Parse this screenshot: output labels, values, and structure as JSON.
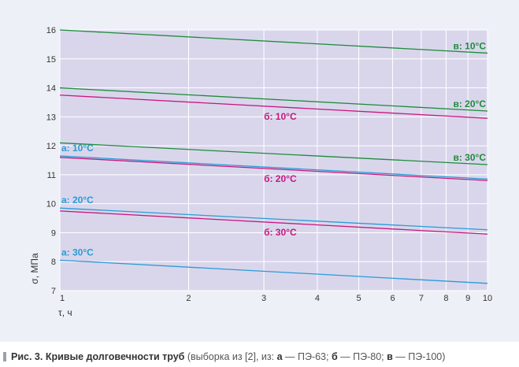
{
  "chart_data": {
    "type": "line",
    "xscale": "log",
    "xlim": [
      1,
      10
    ],
    "ylim": [
      7,
      16
    ],
    "xticks": [
      1,
      2,
      3,
      4,
      5,
      6,
      7,
      8,
      9,
      10
    ],
    "xtick_labels": [
      "1",
      "2",
      "3",
      "4",
      "5",
      "6",
      "7",
      "8",
      "9",
      "10"
    ],
    "yticks": [
      7,
      8,
      9,
      10,
      11,
      12,
      13,
      14,
      15,
      16
    ],
    "ytick_labels": [
      "7",
      "8",
      "9",
      "10",
      "11",
      "12",
      "13",
      "14",
      "15",
      "16"
    ],
    "xlabel": "τ, ч",
    "ylabel": "σ, МПа",
    "grid": true,
    "series": [
      {
        "name": "в: 10°C",
        "group": "в",
        "color": "#1e8c3a",
        "x": [
          1,
          10
        ],
        "values": [
          16.0,
          15.2
        ]
      },
      {
        "name": "в: 20°C",
        "group": "в",
        "color": "#1e8c3a",
        "x": [
          1,
          10
        ],
        "values": [
          14.0,
          13.2
        ]
      },
      {
        "name": "в: 30°C",
        "group": "в",
        "color": "#1e8c3a",
        "x": [
          1,
          10
        ],
        "values": [
          12.1,
          11.35
        ]
      },
      {
        "name": "б: 10°C",
        "group": "б",
        "color": "#c8177e",
        "x": [
          1,
          10
        ],
        "values": [
          13.75,
          12.95
        ]
      },
      {
        "name": "б: 20°C",
        "group": "б",
        "color": "#c8177e",
        "x": [
          1,
          10
        ],
        "values": [
          11.6,
          10.8
        ]
      },
      {
        "name": "б: 30°C",
        "group": "б",
        "color": "#c8177e",
        "x": [
          1,
          10
        ],
        "values": [
          9.75,
          8.95
        ]
      },
      {
        "name": "а: 10°C",
        "group": "а",
        "color": "#2a9bd6",
        "x": [
          1,
          10
        ],
        "values": [
          11.65,
          10.85
        ]
      },
      {
        "name": "а: 20°C",
        "group": "а",
        "color": "#2a9bd6",
        "x": [
          1,
          10
        ],
        "values": [
          9.85,
          9.1
        ]
      },
      {
        "name": "а: 30°C",
        "group": "а",
        "color": "#2a9bd6",
        "x": [
          1,
          10
        ],
        "values": [
          8.05,
          7.25
        ]
      }
    ]
  },
  "caption": {
    "figure_label": "Рис. 3. Кривые долговечности труб",
    "source_open": " (выборка из [2], из: ",
    "a_key": "а",
    "a_text": " — ПЭ-63; ",
    "b_key": "б",
    "b_text": " — ПЭ-80; ",
    "v_key": "в",
    "v_text": " — ПЭ-100)"
  }
}
